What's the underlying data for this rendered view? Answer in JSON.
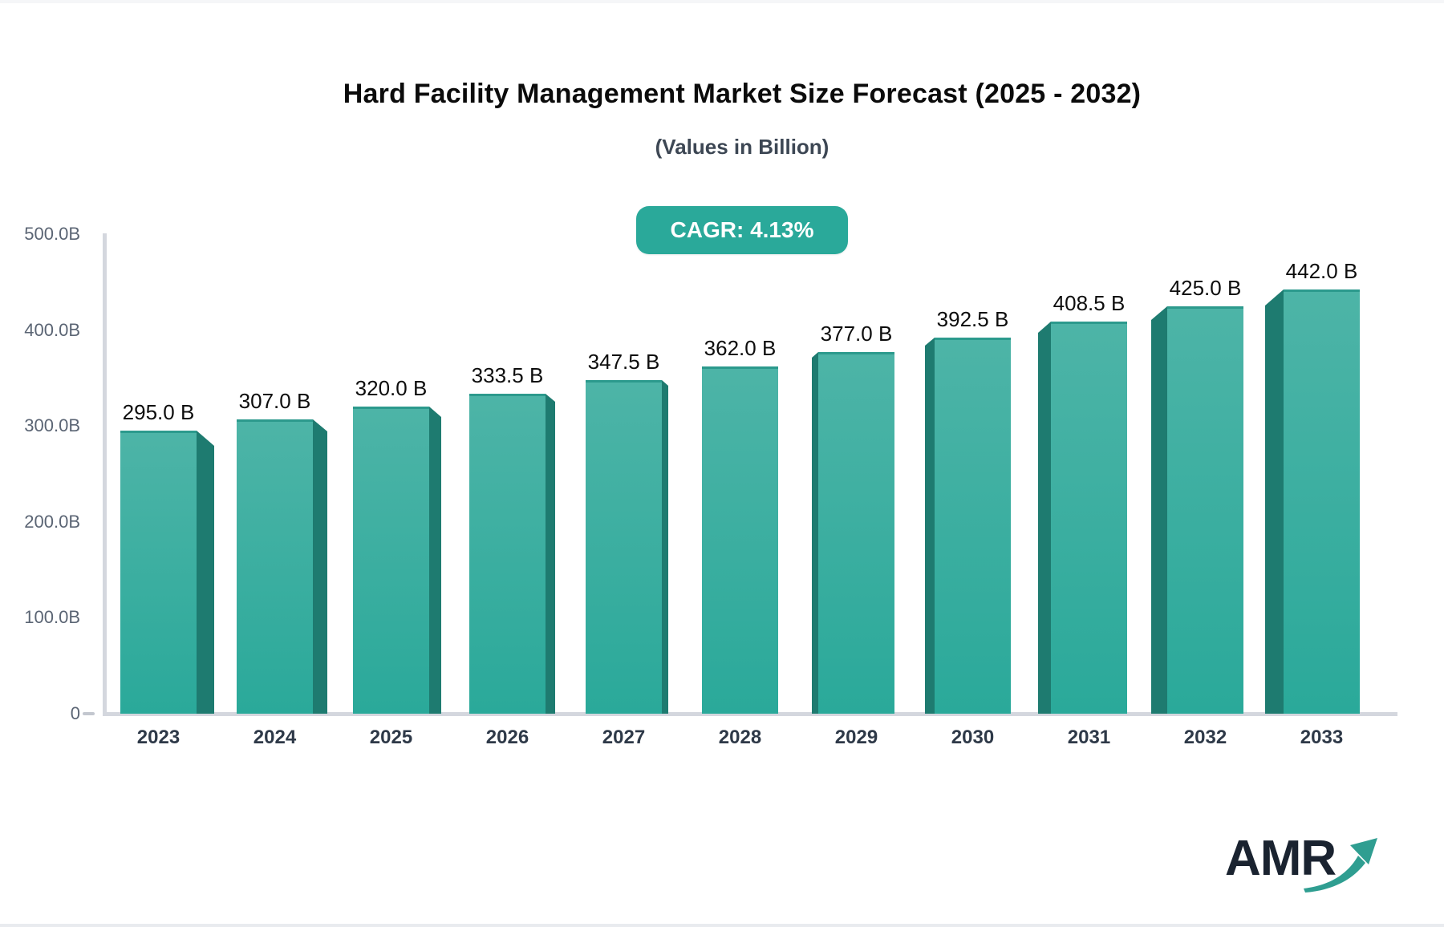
{
  "header": {
    "title": "Hard Facility Management Market Size Forecast (2025 - 2032)",
    "subtitle": "(Values in Billion)",
    "cagr_badge": "CAGR: 4.13%"
  },
  "chart_data": {
    "type": "bar",
    "title": "Hard Facility Management Market Size Forecast (2025 - 2032)",
    "subtitle": "(Values in Billion)",
    "annotation": "CAGR: 4.13%",
    "categories": [
      "2023",
      "2024",
      "2025",
      "2026",
      "2027",
      "2028",
      "2029",
      "2030",
      "2031",
      "2032",
      "2033"
    ],
    "values": [
      295.0,
      307.0,
      320.0,
      333.5,
      347.5,
      362.0,
      377.0,
      392.5,
      408.5,
      425.0,
      442.0
    ],
    "value_labels": [
      "295.0 B",
      "307.0 B",
      "320.0 B",
      "333.5 B",
      "347.5 B",
      "362.0 B",
      "377.0 B",
      "392.5 B",
      "408.5 B",
      "425.0 B",
      "442.0 B"
    ],
    "unit": "Billion",
    "xlabel": "",
    "ylabel": "",
    "ylim": [
      0,
      500
    ],
    "y_ticks": [
      {
        "label": "500.0B",
        "value": 500
      },
      {
        "label": "400.0B",
        "value": 400
      },
      {
        "label": "300.0B",
        "value": 300
      },
      {
        "label": "200.0B",
        "value": 200
      },
      {
        "label": "100.0B",
        "value": 100
      },
      {
        "label": "0",
        "value": 0,
        "dash": true
      }
    ],
    "grid": false,
    "legend": false,
    "style_3d": true,
    "colors": {
      "bar_face_top": "#4db4a7",
      "bar_face_bottom": "#2aa99a",
      "bar_side": "#1e7b70",
      "axis_line": "#d4d7de",
      "badge_background": "#2aa99a",
      "badge_text": "#ffffff",
      "value_label_text": "#0d0d0d",
      "year_label_text": "#2e3948",
      "y_tick_text": "#5b6574"
    }
  },
  "logo": {
    "text": "AMR",
    "arrow_color": "#2f9e91"
  }
}
